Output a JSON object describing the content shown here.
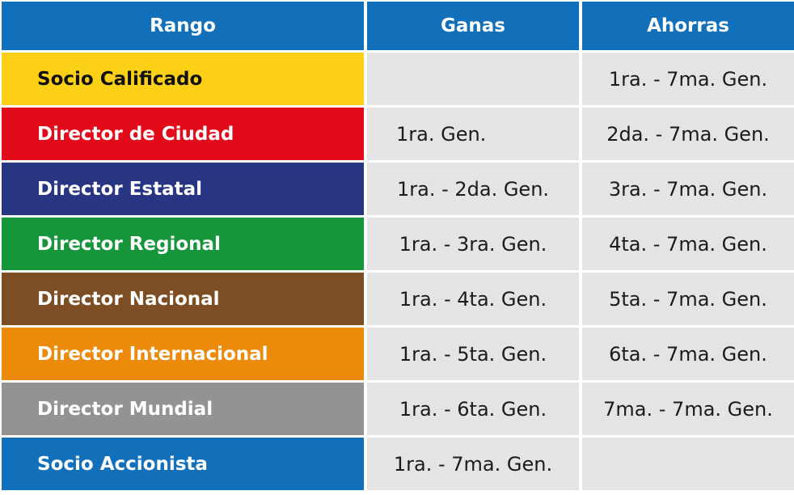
{
  "header": {
    "rango": "Rango",
    "ganas": "Ganas",
    "ahorras": "Ahorras"
  },
  "rows": [
    {
      "rank": "Socio Calificado",
      "color": "#fbd017",
      "text_color": "#111111",
      "ganas": "",
      "ahorras": "1ra. - 7ma. Gen."
    },
    {
      "rank": "Director de Ciudad",
      "color": "#e20b1a",
      "text_color": "#ffffff",
      "ganas": "1ra. Gen.",
      "ahorras": "2da. - 7ma. Gen."
    },
    {
      "rank": "Director Estatal",
      "color": "#283583",
      "text_color": "#ffffff",
      "ganas": "1ra. - 2da. Gen.",
      "ahorras": "3ra. - 7ma. Gen."
    },
    {
      "rank": "Director Regional",
      "color": "#16953a",
      "text_color": "#ffffff",
      "ganas": "1ra. - 3ra.  Gen.",
      "ahorras": "4ta. - 7ma. Gen."
    },
    {
      "rank": "Director Nacional",
      "color": "#7d4e24",
      "text_color": "#ffffff",
      "ganas": "1ra. - 4ta.  Gen.",
      "ahorras": "5ta. - 7ma. Gen."
    },
    {
      "rank": "Director Internacional",
      "color": "#eb8a0b",
      "text_color": "#ffffff",
      "ganas": "1ra. - 5ta.  Gen.",
      "ahorras": "6ta. - 7ma. Gen."
    },
    {
      "rank": "Director Mundial",
      "color": "#939393",
      "text_color": "#ffffff",
      "ganas": "1ra. - 6ta.  Gen.",
      "ahorras": "7ma. - 7ma. Gen."
    },
    {
      "rank": "Socio Accionista",
      "color": "#1170b9",
      "text_color": "#ffffff",
      "ganas": "1ra. - 7ma.  Gen.",
      "ahorras": ""
    }
  ],
  "colors": {
    "header_bg": "#1170b9",
    "cell_bg": "#e4e4e4"
  }
}
